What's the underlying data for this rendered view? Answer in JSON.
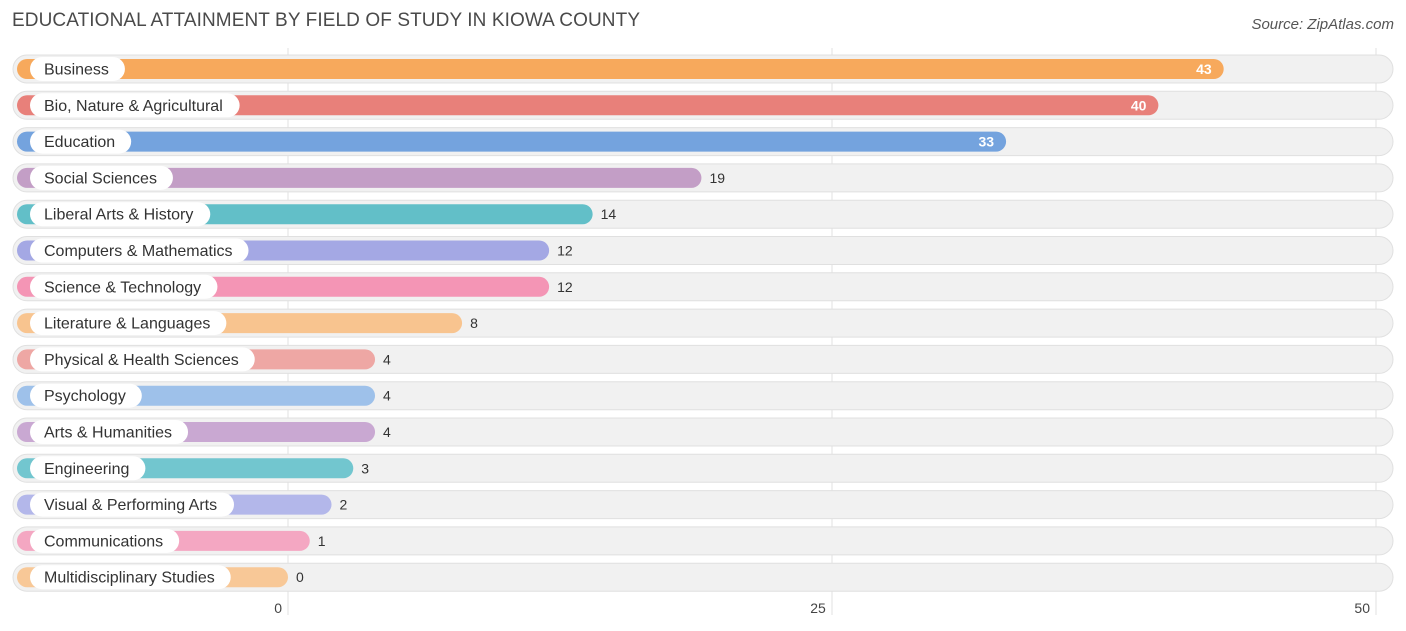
{
  "header": {
    "title": "EDUCATIONAL ATTAINMENT BY FIELD OF STUDY IN KIOWA COUNTY",
    "source": "Source: ZipAtlas.com"
  },
  "chart_data": {
    "type": "bar",
    "orientation": "horizontal",
    "title": "EDUCATIONAL ATTAINMENT BY FIELD OF STUDY IN KIOWA COUNTY",
    "xlabel": "",
    "ylabel": "",
    "xlim": [
      0,
      50
    ],
    "ticks": [
      0,
      25,
      50
    ],
    "grid": true,
    "categories": [
      "Business",
      "Bio, Nature & Agricultural",
      "Education",
      "Social Sciences",
      "Liberal Arts & History",
      "Computers & Mathematics",
      "Science & Technology",
      "Literature & Languages",
      "Physical & Health Sciences",
      "Psychology",
      "Arts & Humanities",
      "Engineering",
      "Visual & Performing Arts",
      "Communications",
      "Multidisciplinary Studies"
    ],
    "values": [
      43,
      40,
      33,
      19,
      14,
      12,
      12,
      8,
      4,
      4,
      4,
      3,
      2,
      1,
      0
    ],
    "colors": [
      "#f7a95c",
      "#e8807a",
      "#74a3de",
      "#c39ec6",
      "#62bfc8",
      "#a4a8e4",
      "#f495b5",
      "#f8c48f",
      "#eea7a4",
      "#9ec1ea",
      "#c9a8d2",
      "#72c6cf",
      "#b3b7ea",
      "#f4a7c2",
      "#f8c897"
    ]
  }
}
